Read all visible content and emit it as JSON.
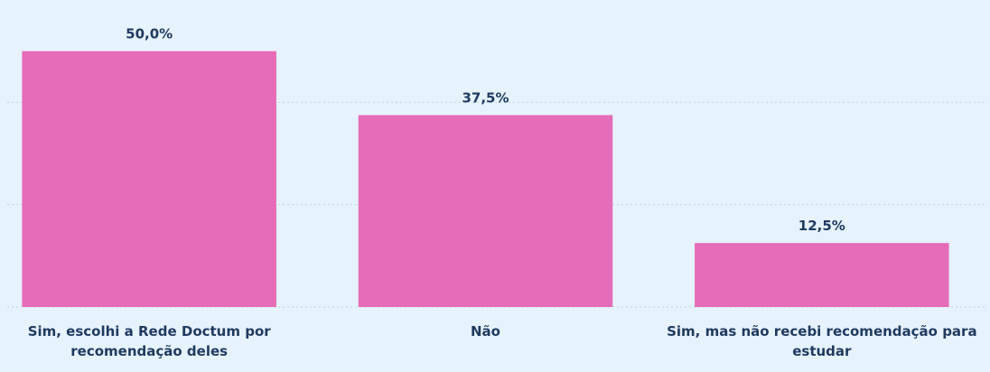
{
  "chart_data": {
    "type": "bar",
    "categories": [
      "Sim, escolhi a Rede Doctum por recomendação deles",
      "Não",
      "Sim, mas não recebi recomendação para estudar"
    ],
    "values": [
      50,
      37.5,
      12.5
    ],
    "value_labels": [
      "50,0%",
      "37,5%",
      "12,5%"
    ],
    "color": "#e66bb8",
    "ylim": [
      0,
      60
    ],
    "yticks": [
      0,
      20,
      40
    ],
    "grid": true
  }
}
